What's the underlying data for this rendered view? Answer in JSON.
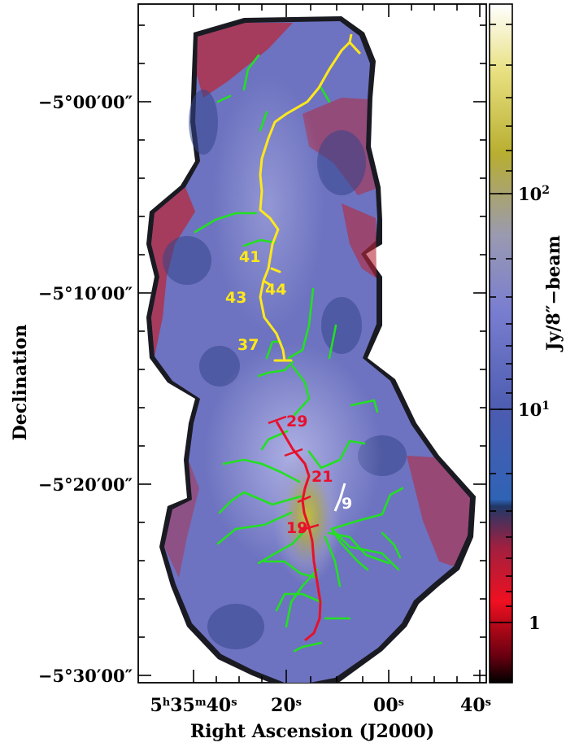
{
  "figure": {
    "y_axis_label": "Declination",
    "x_axis_label": "Right Ascension (J2000)",
    "colorbar_label": "Jy/8″−beam"
  },
  "x_ticks": [
    {
      "html": "5<tspan baseline-shift='super' font-size='13'>h</tspan>35<tspan baseline-shift='super' font-size='13'>m</tspan>40<tspan baseline-shift='super' font-size='13'>s</tspan>",
      "text": "5h35m40s"
    },
    {
      "html": "20<tspan baseline-shift='super' font-size='13'>s</tspan>",
      "text": "20s"
    },
    {
      "html": "00<tspan baseline-shift='super' font-size='13'>s</tspan>",
      "text": "00s"
    },
    {
      "html": "40<tspan baseline-shift='super' font-size='13'>s</tspan>",
      "text": "40s"
    }
  ],
  "y_ticks": [
    "−5°00′00″",
    "−5°10′00″",
    "−5°20′00″",
    "−5°30′00″"
  ],
  "colorbar_ticks": [
    {
      "base": "10",
      "exp": "2"
    },
    {
      "base": "10",
      "exp": "1"
    },
    {
      "base": "1",
      "exp": ""
    }
  ],
  "filament_labels": [
    {
      "text": "41",
      "color": "#ffe81a"
    },
    {
      "text": "43",
      "color": "#ffe81a"
    },
    {
      "text": "44",
      "color": "#ffe81a"
    },
    {
      "text": "37",
      "color": "#ffe81a"
    },
    {
      "text": "29",
      "color": "#e8102a"
    },
    {
      "text": "21",
      "color": "#e8102a"
    },
    {
      "text": "19",
      "color": "#e8102a"
    },
    {
      "text": "9",
      "color": "#ffffff"
    }
  ],
  "colors": {
    "map_background": "#7b80c6",
    "edge_noise": "#b8283c",
    "yellow_filament": "#ffe81a",
    "red_filament": "#e8102a",
    "green_branches": "#22e022",
    "white_filament": "#ffffff"
  }
}
